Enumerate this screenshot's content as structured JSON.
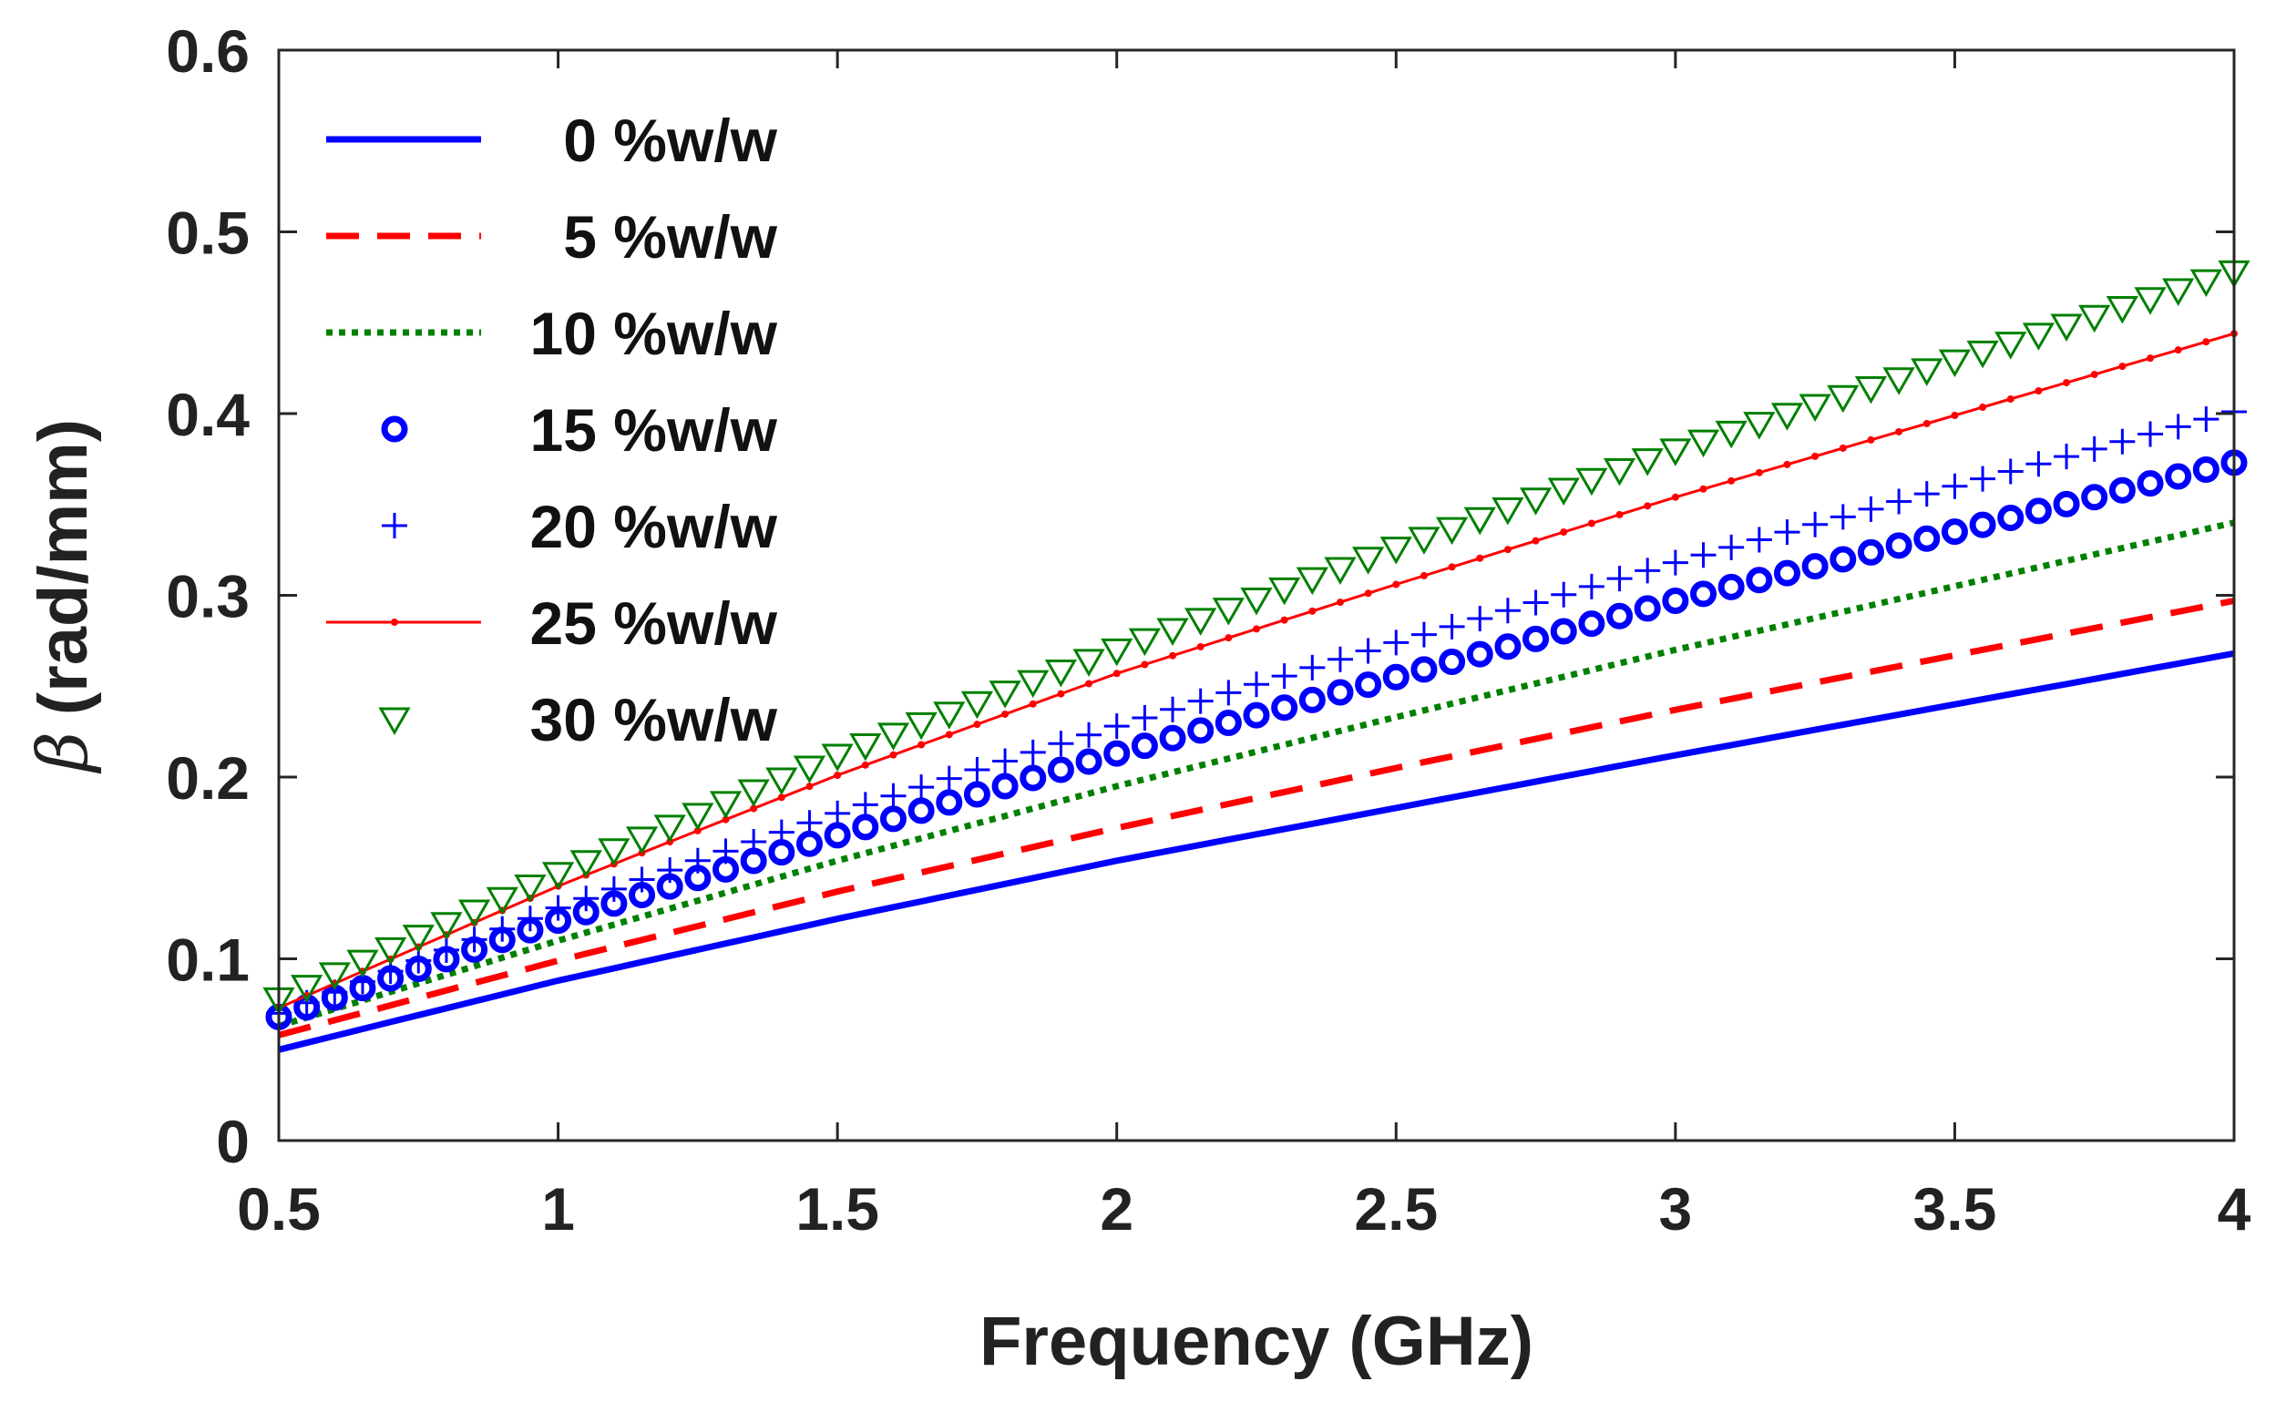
{
  "chart_data": {
    "type": "line",
    "title": "",
    "xlabel": "Frequency (GHz)",
    "ylabel_symbol": "β",
    "ylabel_unit": "(rad/mm)",
    "xlim": [
      0.5,
      4
    ],
    "ylim": [
      0,
      0.6
    ],
    "xticks": [
      0.5,
      1,
      1.5,
      2,
      2.5,
      3,
      3.5,
      4
    ],
    "xtick_labels": [
      "0.5",
      "1",
      "1.5",
      "2",
      "2.5",
      "3",
      "3.5",
      "4"
    ],
    "yticks": [
      0,
      0.1,
      0.2,
      0.3,
      0.4,
      0.5,
      0.6
    ],
    "ytick_labels": [
      "0",
      "0.1",
      "0.2",
      "0.3",
      "0.4",
      "0.5",
      "0.6"
    ],
    "grid": false,
    "legend_position": "top-left",
    "marker_step_ghz": 0.05,
    "series": [
      {
        "name": "0 %w/w",
        "style": "solid",
        "marker": "none",
        "color": "#0000ff",
        "x": [
          0.5,
          1,
          1.5,
          2,
          2.5,
          3,
          3.5,
          4
        ],
        "y": [
          0.05,
          0.088,
          0.122,
          0.154,
          0.183,
          0.212,
          0.24,
          0.268
        ]
      },
      {
        "name": "5 %w/w",
        "style": "dashed",
        "marker": "none",
        "color": "#ff0000",
        "x": [
          0.5,
          1,
          1.5,
          2,
          2.5,
          3,
          3.5,
          4
        ],
        "y": [
          0.058,
          0.099,
          0.137,
          0.172,
          0.205,
          0.237,
          0.267,
          0.297
        ]
      },
      {
        "name": "10 %w/w",
        "style": "dotted",
        "marker": "none",
        "color": "#008000",
        "x": [
          0.5,
          1,
          1.5,
          2,
          2.5,
          3,
          3.5,
          4
        ],
        "y": [
          0.063,
          0.11,
          0.154,
          0.195,
          0.233,
          0.27,
          0.305,
          0.34
        ]
      },
      {
        "name": "15 %w/w",
        "style": "markers",
        "marker": "circle",
        "color": "#0000ff",
        "x": [
          0.5,
          1,
          1.5,
          2,
          2.5,
          3,
          3.5,
          4
        ],
        "y": [
          0.068,
          0.121,
          0.168,
          0.213,
          0.255,
          0.297,
          0.335,
          0.373
        ]
      },
      {
        "name": "20 %w/w",
        "style": "markers",
        "marker": "plus",
        "color": "#0000ff",
        "x": [
          0.5,
          1,
          1.5,
          2,
          2.5,
          3,
          3.5,
          4
        ],
        "y": [
          0.07,
          0.128,
          0.18,
          0.228,
          0.274,
          0.318,
          0.36,
          0.401
        ]
      },
      {
        "name": "25 %w/w",
        "style": "solid",
        "marker": "dot",
        "color": "#ff0000",
        "x": [
          0.5,
          1,
          1.5,
          2,
          2.5,
          3,
          3.5,
          4
        ],
        "y": [
          0.073,
          0.14,
          0.201,
          0.257,
          0.306,
          0.354,
          0.399,
          0.444
        ]
      },
      {
        "name": "30 %w/w",
        "style": "markers",
        "marker": "triangle",
        "color": "#008000",
        "x": [
          0.5,
          1,
          1.5,
          2,
          2.5,
          3,
          3.5,
          4
        ],
        "y": [
          0.078,
          0.147,
          0.212,
          0.27,
          0.326,
          0.38,
          0.429,
          0.478
        ]
      }
    ]
  }
}
